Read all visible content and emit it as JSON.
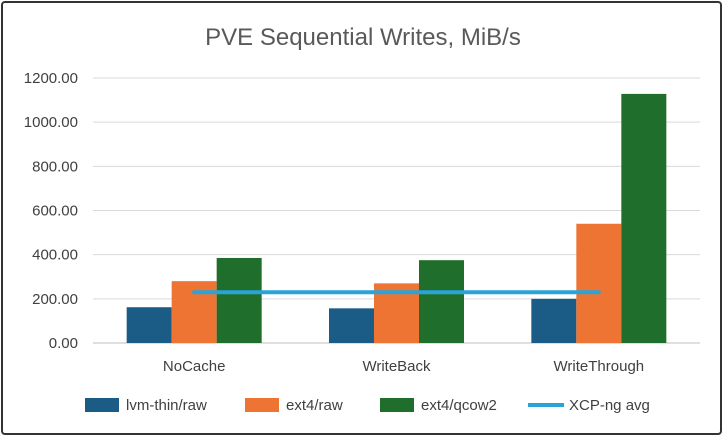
{
  "chart_data": {
    "type": "bar",
    "title": "PVE Sequential Writes, MiB/s",
    "categories": [
      "NoCache",
      "WriteBack",
      "WriteThrough"
    ],
    "ylim": [
      0,
      1200
    ],
    "yticks": [
      "0.00",
      "200.00",
      "400.00",
      "600.00",
      "800.00",
      "1000.00",
      "1200.00"
    ],
    "grid": true,
    "legend_position": "bottom",
    "series": [
      {
        "name": "lvm-thin/raw",
        "color": "#1b5c87",
        "values": [
          162,
          157,
          200
        ]
      },
      {
        "name": "ext4/raw",
        "color": "#ed7433",
        "values": [
          280,
          270,
          540
        ]
      },
      {
        "name": "ext4/qcow2",
        "color": "#1f6e2b",
        "values": [
          385,
          375,
          1128
        ]
      }
    ],
    "reference_line": {
      "name": "XCP-ng avg",
      "color": "#2aa3d8",
      "value": 230
    }
  }
}
